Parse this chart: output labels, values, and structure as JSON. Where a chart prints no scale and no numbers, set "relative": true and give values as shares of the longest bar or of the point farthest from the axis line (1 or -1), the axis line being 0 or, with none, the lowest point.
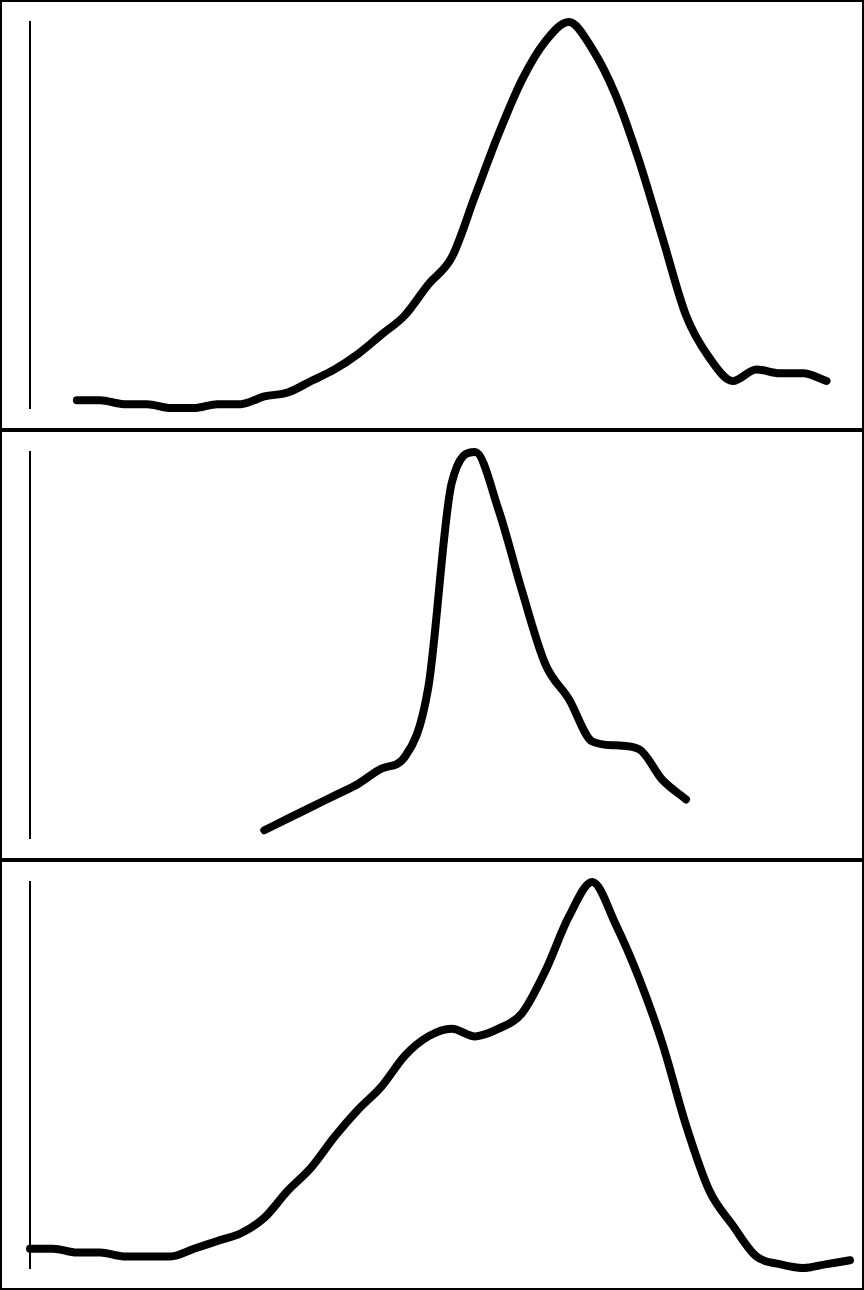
{
  "chart_data": [
    {
      "type": "line",
      "relative": true,
      "categories": [
        null,
        null,
        null,
        null,
        null,
        null,
        null,
        null,
        null,
        null,
        null,
        null,
        null,
        null,
        null,
        null,
        null,
        null,
        null,
        null,
        null,
        null,
        null,
        null,
        null,
        null,
        null,
        null,
        null,
        null,
        null,
        null,
        null,
        null,
        null,
        null
      ],
      "series": [
        {
          "color": "#000000",
          "values": [
            null,
            null,
            0.02,
            0.02,
            0.01,
            0.01,
            0,
            0,
            0.01,
            0.01,
            0.03,
            0.04,
            0.07,
            0.1,
            0.14,
            0.19,
            0.24,
            0.32,
            0.39,
            0.55,
            0.71,
            0.85,
            0.95,
            1,
            0.93,
            0.81,
            0.64,
            0.44,
            0.24,
            0.13,
            0.07,
            0.1,
            0.09,
            0.09,
            0.07,
            null
          ]
        }
      ]
    },
    {
      "type": "line",
      "relative": true,
      "categories": [
        null,
        null,
        null,
        null,
        null,
        null,
        null,
        null,
        null,
        null,
        null,
        null,
        null,
        null,
        null,
        null,
        null,
        null,
        null,
        null,
        null,
        null,
        null,
        null,
        null,
        null,
        null,
        null,
        null,
        null,
        null,
        null,
        null,
        null,
        null,
        null
      ],
      "series": [
        {
          "color": "#000000",
          "values": [
            null,
            null,
            null,
            null,
            null,
            null,
            null,
            null,
            null,
            null,
            0.02,
            0.05,
            0.08,
            0.11,
            0.14,
            0.18,
            0.21,
            0.39,
            0.92,
            1,
            0.85,
            0.64,
            0.45,
            0.36,
            0.25,
            0.24,
            0.23,
            0.15,
            0.1,
            null,
            null,
            null,
            null,
            null,
            null,
            null
          ]
        }
      ]
    },
    {
      "type": "line",
      "relative": true,
      "categories": [
        null,
        null,
        null,
        null,
        null,
        null,
        null,
        null,
        null,
        null,
        null,
        null,
        null,
        null,
        null,
        null,
        null,
        null,
        null,
        null,
        null,
        null,
        null,
        null,
        null,
        null,
        null,
        null,
        null,
        null,
        null,
        null,
        null,
        null,
        null,
        null
      ],
      "series": [
        {
          "color": "#000000",
          "values": [
            0.05,
            0.05,
            0.04,
            0.04,
            0.03,
            0.03,
            0.03,
            0.05,
            0.07,
            0.09,
            0.13,
            0.2,
            0.26,
            0.34,
            0.41,
            0.47,
            0.55,
            0.6,
            0.62,
            0.6,
            0.62,
            0.66,
            0.77,
            0.91,
            1,
            0.89,
            0.75,
            0.58,
            0.37,
            0.2,
            0.11,
            0.03,
            0.01,
            0,
            0.01,
            0.02
          ]
        }
      ]
    }
  ]
}
